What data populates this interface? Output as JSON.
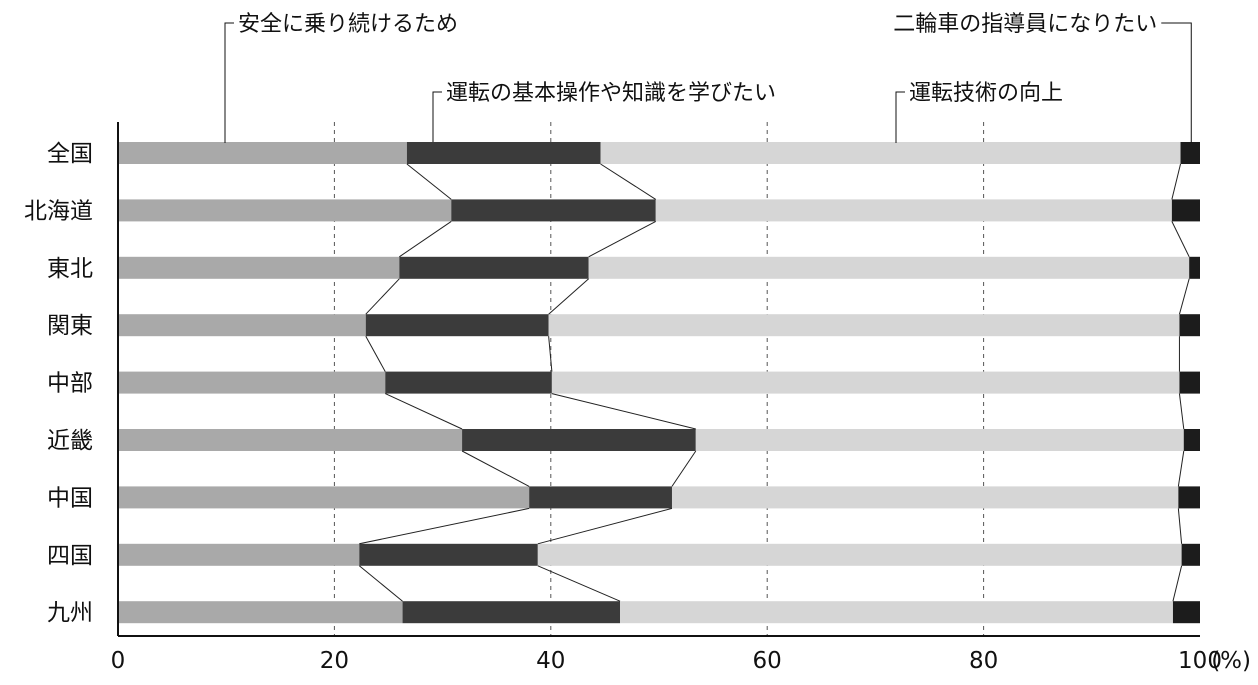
{
  "chart_data": {
    "type": "bar",
    "orientation": "horizontal",
    "stacked": true,
    "categories": [
      "全国",
      "北海道",
      "東北",
      "関東",
      "中部",
      "近畿",
      "中国",
      "四国",
      "九州"
    ],
    "series": [
      {
        "name": "安全に乗り続けるため",
        "color": "#a9a9a9",
        "values": [
          26.7,
          30.8,
          26.0,
          22.9,
          24.7,
          31.8,
          38.0,
          22.3,
          26.3
        ]
      },
      {
        "name": "運転の基本操作や知識を学びたい",
        "color": "#3b3b3b",
        "values": [
          17.9,
          18.9,
          17.5,
          16.9,
          15.4,
          21.6,
          13.2,
          16.5,
          20.1
        ]
      },
      {
        "name": "運転技術の向上",
        "color": "#d6d6d6",
        "values": [
          53.6,
          47.7,
          55.5,
          58.3,
          58.0,
          45.1,
          46.8,
          59.5,
          51.1
        ]
      },
      {
        "name": "二輪車の指導員になりたい",
        "color": "#1c1c1c",
        "values": [
          1.8,
          2.6,
          1.0,
          1.9,
          1.9,
          1.5,
          2.0,
          1.7,
          2.5
        ]
      }
    ],
    "xlim": [
      0,
      100
    ],
    "x_ticks": [
      "0",
      "20",
      "40",
      "60",
      "80",
      "100"
    ],
    "x_unit": "(%)",
    "grid": "vertical-dashed"
  }
}
